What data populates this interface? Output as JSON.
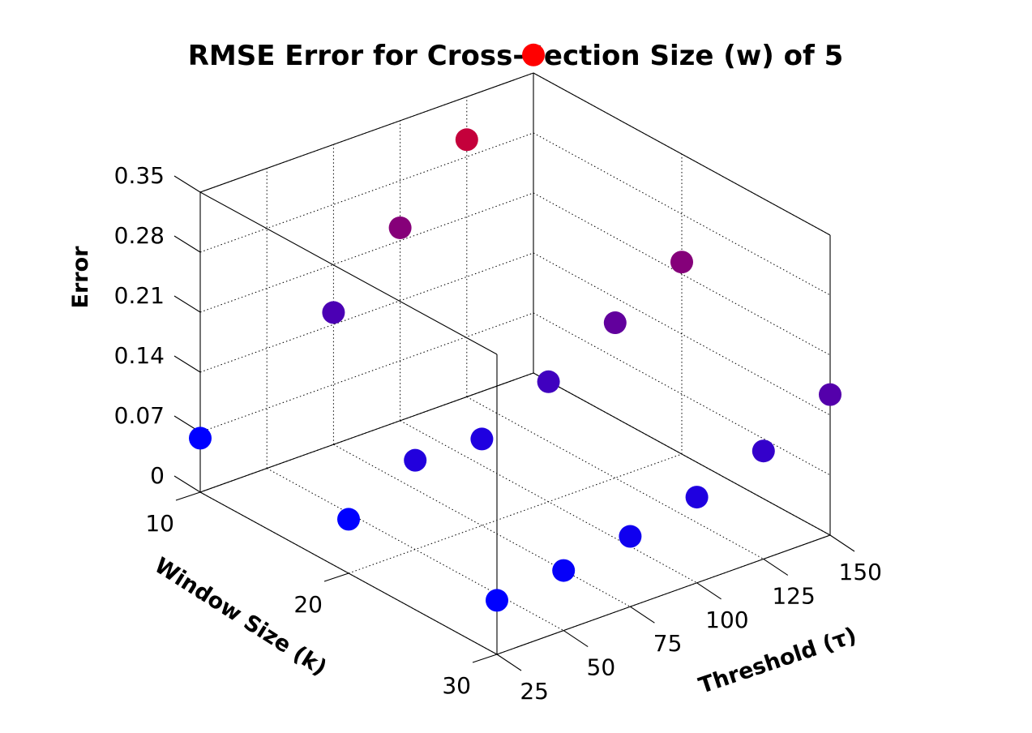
{
  "chart_data": {
    "type": "scatter",
    "title": "RMSE Error for Cross-Section Size (w) of 5",
    "xlabel": "Threshold (τ)",
    "ylabel": "Window Size (k)",
    "zlabel": "Error",
    "x_ticks": [
      "25",
      "50",
      "75",
      "100",
      "125",
      "150"
    ],
    "y_ticks": [
      "10",
      "20",
      "30"
    ],
    "z_ticks": [
      "0",
      "0.07",
      "0.14",
      "0.21",
      "0.28",
      "0.35"
    ],
    "xlim": [
      25,
      150
    ],
    "ylim": [
      10,
      30
    ],
    "zlim": [
      0,
      0.35
    ],
    "grid": true,
    "colormap": {
      "low": "#0000ff",
      "high": "#ff0000"
    },
    "points": [
      {
        "x": 25,
        "y": 10,
        "z": 0.063
      },
      {
        "x": 25,
        "y": 20,
        "z": 0.063
      },
      {
        "x": 25,
        "y": 30,
        "z": 0.063
      },
      {
        "x": 50,
        "y": 20,
        "z": 0.104
      },
      {
        "x": 50,
        "y": 30,
        "z": 0.07
      },
      {
        "x": 75,
        "y": 10,
        "z": 0.154
      },
      {
        "x": 75,
        "y": 20,
        "z": 0.101
      },
      {
        "x": 75,
        "y": 30,
        "z": 0.082
      },
      {
        "x": 100,
        "y": 10,
        "z": 0.225
      },
      {
        "x": 100,
        "y": 20,
        "z": 0.14
      },
      {
        "x": 100,
        "y": 30,
        "z": 0.1
      },
      {
        "x": 125,
        "y": 10,
        "z": 0.3
      },
      {
        "x": 125,
        "y": 20,
        "z": 0.181
      },
      {
        "x": 125,
        "y": 30,
        "z": 0.126
      },
      {
        "x": 150,
        "y": 10,
        "z": 0.371
      },
      {
        "x": 150,
        "y": 20,
        "z": 0.224
      },
      {
        "x": 150,
        "y": 30,
        "z": 0.164
      }
    ]
  }
}
